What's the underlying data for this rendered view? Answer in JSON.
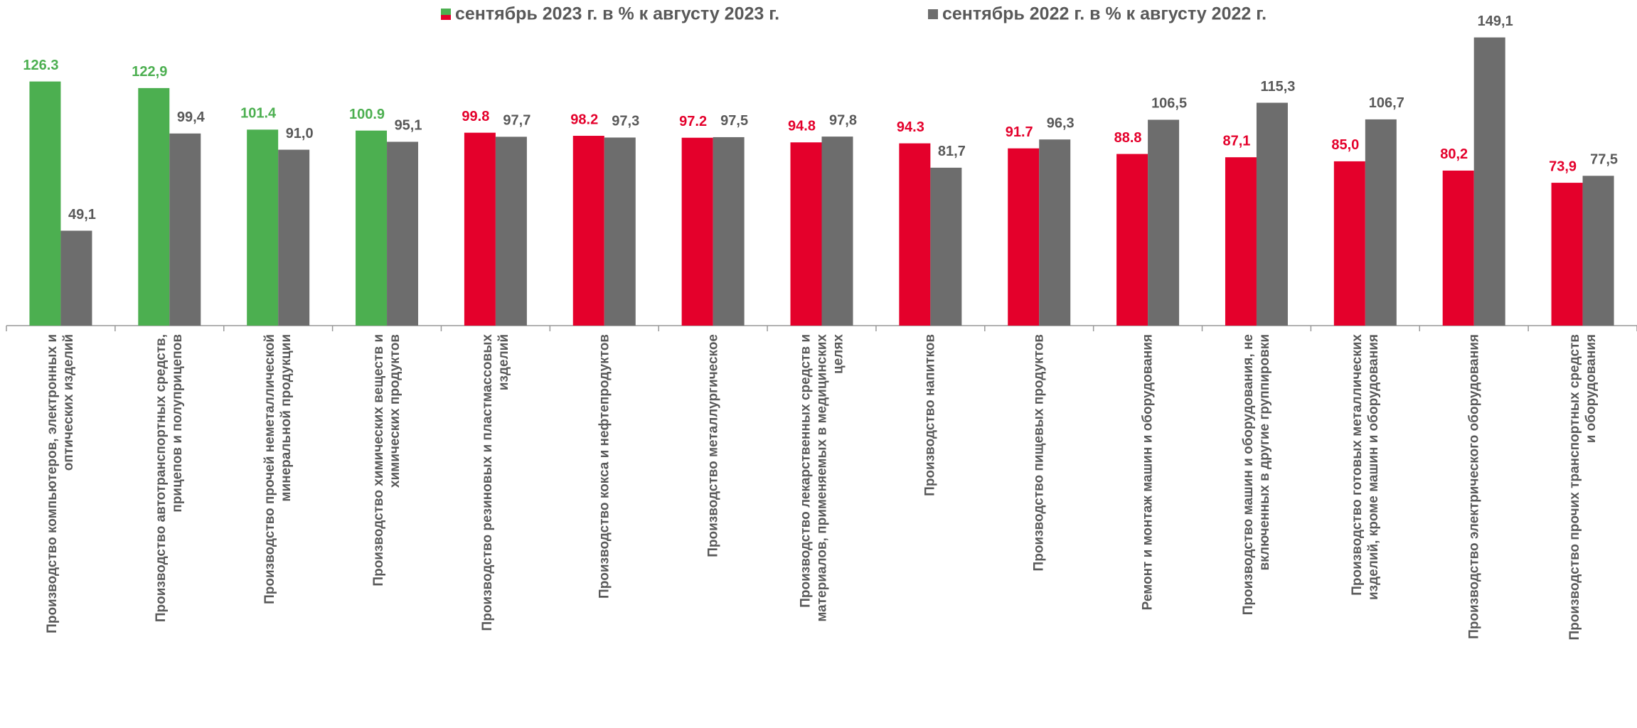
{
  "chart_data": {
    "type": "bar",
    "categories": [
      "Производство компьютеров, электронных и оптических изделий",
      "Производство автотранспортных средств, прицепов и полуприцепов",
      "Производство прочей неметаллической минеральной продукции",
      "Производство химических веществ и химических продуктов",
      "Производство резиновых и пластмассовых изделий",
      "Производство кокса и нефтепродуктов",
      "Производство металлургическое",
      "Производство лекарственных средств и материалов, применяемых в медицинских целях",
      "Производство напитков",
      "Производство пищевых продуктов",
      "Ремонт и монтаж машин и оборудования",
      "Производство машин и оборудования, не включенных в другие группировки",
      "Производство готовых металлических изделий, кроме машин и оборудования",
      "Производство электрического оборудования",
      "Производство прочих транспортных средств и оборудования"
    ],
    "series": [
      {
        "name": "сентябрь 2023 г. в % к августу 2023 г.",
        "colors": [
          "#4caf50",
          "#4caf50",
          "#4caf50",
          "#4caf50",
          "#e4002b",
          "#e4002b",
          "#e4002b",
          "#e4002b",
          "#e4002b",
          "#e4002b",
          "#e4002b",
          "#e4002b",
          "#e4002b",
          "#e4002b",
          "#e4002b"
        ],
        "values": [
          126.3,
          122.9,
          101.4,
          100.9,
          99.8,
          98.2,
          97.2,
          94.8,
          94.3,
          91.7,
          88.8,
          87.1,
          85.0,
          80.2,
          73.9
        ],
        "value_labels": [
          "126.3",
          "122,9",
          "101.4",
          "100.9",
          "99.8",
          "98.2",
          "97.2",
          "94.8",
          "94.3",
          "91.7",
          "88.8",
          "87,1",
          "85,0",
          "80,2",
          "73,9"
        ]
      },
      {
        "name": "сентябрь 2022 г. в % к августу 2022 г.",
        "color": "#6d6d6d",
        "values": [
          49.1,
          99.4,
          91.0,
          95.1,
          97.7,
          97.3,
          97.5,
          97.8,
          81.7,
          96.3,
          106.5,
          115.3,
          106.7,
          149.1,
          77.5
        ],
        "value_labels": [
          "49,1",
          "99,4",
          "91,0",
          "95,1",
          "97,7",
          "97,3",
          "97,5",
          "97,8",
          "81,7",
          "96,3",
          "106,5",
          "115,3",
          "106,7",
          "149,1",
          "77,5"
        ]
      }
    ],
    "ylim": [
      0,
      160
    ]
  }
}
